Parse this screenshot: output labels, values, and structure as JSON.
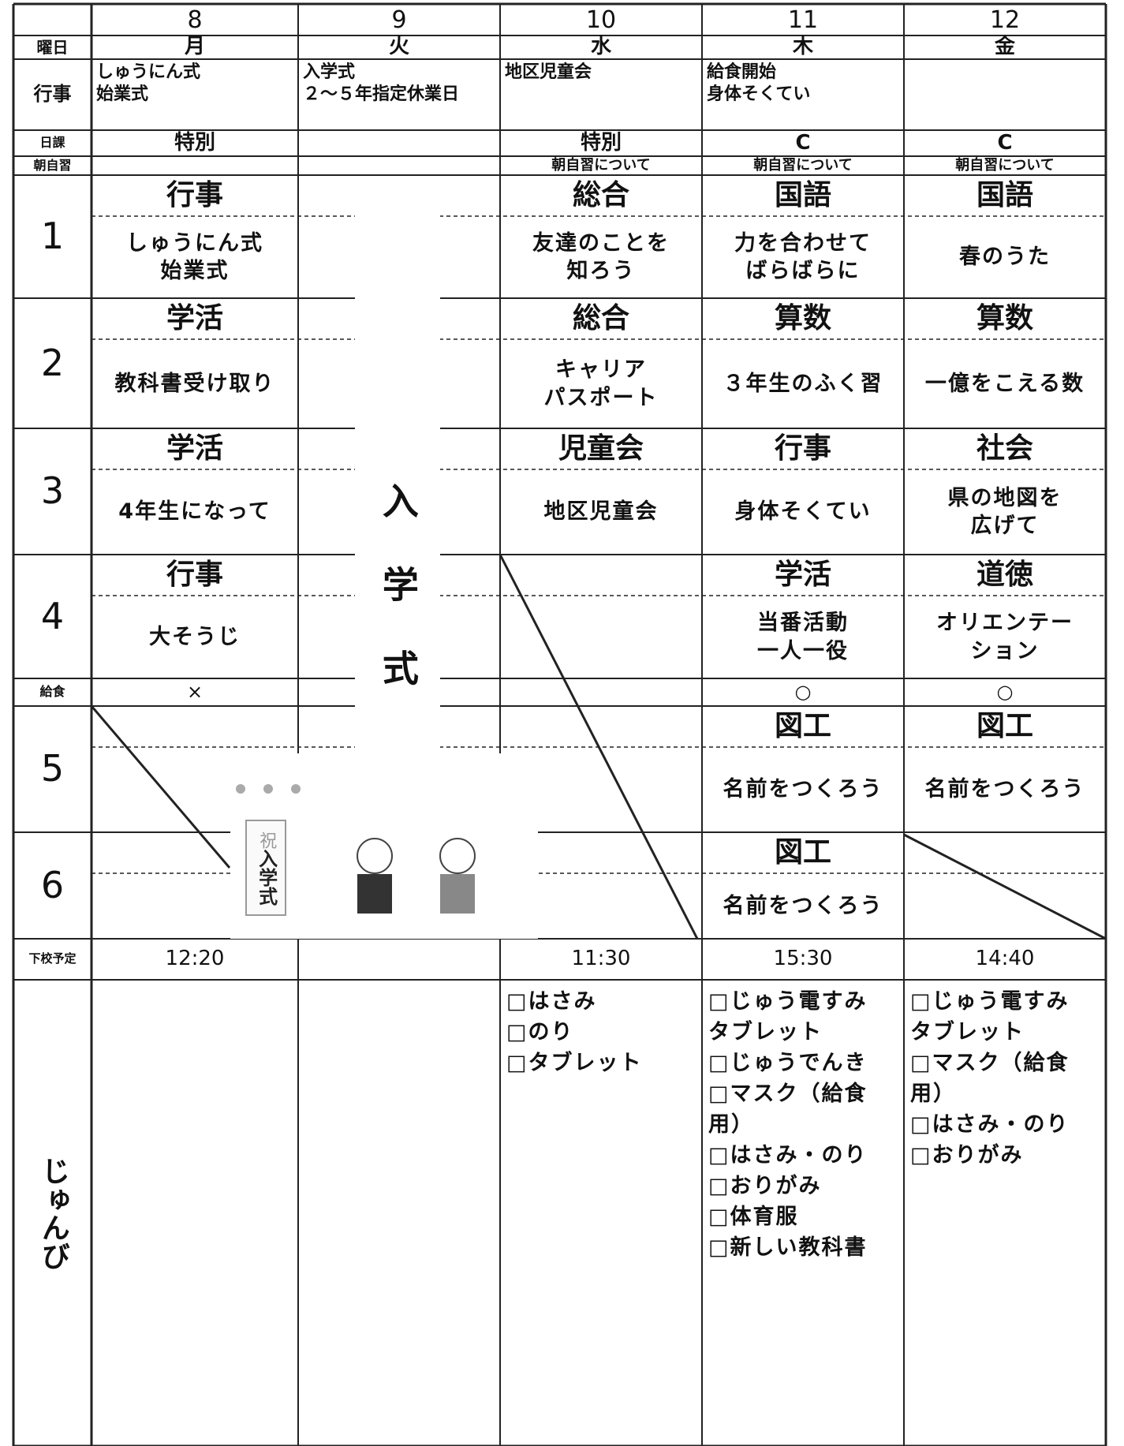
{
  "header": {
    "weekday_label": "曜日",
    "events_label": "行事",
    "schedule_label": "日課",
    "morning_label": "朝自習",
    "lunch_label": "給食",
    "dismissal_label": "下校予定",
    "prep_label": "じゅんび"
  },
  "periods": [
    "1",
    "2",
    "3",
    "4",
    "5",
    "6"
  ],
  "days": [
    {
      "date": "8",
      "weekday": "月",
      "events": [
        "しゅうにん式",
        "始業式"
      ],
      "schedule": "特別",
      "periods": [
        {
          "subject": "行事",
          "content": [
            "しゅうにん式",
            "始業式"
          ]
        },
        {
          "subject": "学活",
          "content": [
            "教科書受け取り"
          ]
        },
        {
          "subject": "学活",
          "content": [
            "4年生になって"
          ]
        },
        {
          "subject": "行事",
          "content": [
            "大そうじ"
          ]
        }
      ],
      "lunch": "×",
      "dismissal": "12:20"
    },
    {
      "date": "9",
      "weekday": "火",
      "events": [
        "入学式",
        "２～５年指定休業日"
      ],
      "banner": "入学式"
    },
    {
      "date": "10",
      "weekday": "水",
      "events": [
        "地区児童会"
      ],
      "schedule": "特別",
      "morning": "朝自習について",
      "periods": [
        {
          "subject": "総合",
          "content": [
            "友達のことを",
            "知ろう"
          ]
        },
        {
          "subject": "総合",
          "content": [
            "キャリア",
            "パスポート"
          ]
        },
        {
          "subject": "児童会",
          "content": [
            "地区児童会"
          ]
        }
      ],
      "dismissal": "11:30",
      "prep": [
        "□はさみ",
        "□のり",
        "□タブレット"
      ]
    },
    {
      "date": "11",
      "weekday": "木",
      "events": [
        "給食開始",
        "身体そくてい"
      ],
      "schedule": "C",
      "morning": "朝自習について",
      "periods": [
        {
          "subject": "国語",
          "content": [
            "力を合わせて",
            "ばらばらに"
          ]
        },
        {
          "subject": "算数",
          "content": [
            "３年生のふく習"
          ]
        },
        {
          "subject": "行事",
          "content": [
            "身体そくてい"
          ]
        },
        {
          "subject": "学活",
          "content": [
            "当番活動",
            "一人一役"
          ]
        },
        {
          "subject": "図工",
          "content": [
            "名前をつくろう"
          ]
        },
        {
          "subject": "図工",
          "content": [
            "名前をつくろう"
          ]
        }
      ],
      "lunch": "○",
      "dismissal": "15:30",
      "prep": [
        "□じゅう電すみ",
        "タブレット",
        "□じゅうでんき",
        "□マスク（給食",
        "用）",
        "□はさみ・のり",
        "□おりがみ",
        "□体育服",
        "□新しい教科書"
      ]
    },
    {
      "date": "12",
      "weekday": "金",
      "schedule": "C",
      "morning": "朝自習について",
      "periods": [
        {
          "subject": "国語",
          "content": [
            "春のうた"
          ]
        },
        {
          "subject": "算数",
          "content": [
            "一億をこえる数"
          ]
        },
        {
          "subject": "社会",
          "content": [
            "県の地図を",
            "広げて"
          ]
        },
        {
          "subject": "道徳",
          "content": [
            "オリエンテー",
            "ション"
          ]
        },
        {
          "subject": "図工",
          "content": [
            "名前をつくろう"
          ]
        }
      ],
      "lunch": "○",
      "dismissal": "14:40",
      "prep": [
        "□じゅう電すみ",
        "タブレット",
        "□マスク（給食",
        "用）",
        "□はさみ・のり",
        "□おりがみ"
      ]
    }
  ],
  "illustration": {
    "sign": [
      "祝",
      "入学式"
    ]
  }
}
